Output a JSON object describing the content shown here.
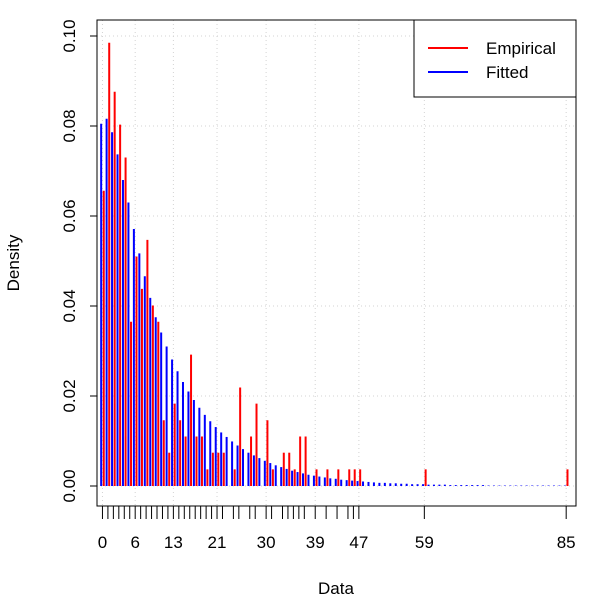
{
  "chart_data": {
    "type": "bar",
    "xlabel": "Data",
    "ylabel": "Density",
    "ylim": [
      0,
      0.1
    ],
    "xlim": [
      -1,
      86.8
    ],
    "grid": true,
    "legend_position": "top-right",
    "y_ticks": [
      "0.00",
      "0.02",
      "0.04",
      "0.06",
      "0.08",
      "0.10"
    ],
    "y_tick_values": [
      0,
      0.02,
      0.04,
      0.06,
      0.08,
      0.1
    ],
    "x_labeled_ticks": [
      0,
      6,
      13,
      21,
      30,
      39,
      47,
      59,
      85
    ],
    "x_minor_ticks": [
      0,
      1,
      2,
      3,
      4,
      5,
      6,
      7,
      8,
      9,
      10,
      11,
      12,
      13,
      14,
      15,
      16,
      17,
      18,
      19,
      20,
      21,
      22,
      24,
      25,
      27,
      28,
      30,
      31,
      33,
      34,
      35,
      36,
      37,
      39,
      41,
      43,
      45,
      46,
      47,
      59,
      85
    ],
    "series": [
      {
        "name": "Empirical",
        "color": "#ff0000",
        "x": [
          0,
          1,
          2,
          3,
          4,
          5,
          6,
          7,
          8,
          9,
          10,
          11,
          12,
          13,
          14,
          15,
          16,
          17,
          18,
          19,
          20,
          21,
          22,
          24,
          25,
          27,
          28,
          30,
          31,
          33,
          34,
          35,
          36,
          37,
          39,
          41,
          43,
          45,
          46,
          47,
          59,
          85
        ],
        "values": [
          0.0656,
          0.0985,
          0.0876,
          0.0803,
          0.073,
          0.0365,
          0.051,
          0.0438,
          0.0547,
          0.0401,
          0.0365,
          0.0146,
          0.0074,
          0.0183,
          0.0146,
          0.011,
          0.0292,
          0.011,
          0.011,
          0.0037,
          0.0074,
          0.0074,
          0.0074,
          0.0037,
          0.0219,
          0.011,
          0.0183,
          0.0146,
          0.0037,
          0.0074,
          0.0074,
          0.0037,
          0.011,
          0.011,
          0.0037,
          0.0037,
          0.0037,
          0.0037,
          0.0037,
          0.0037,
          0.0037,
          0.0037
        ]
      },
      {
        "name": "Fitted",
        "color": "#0000ff",
        "x_start": 0,
        "x_end": 85,
        "values": [
          0.0805,
          0.0816,
          0.0786,
          0.0737,
          0.068,
          0.063,
          0.0571,
          0.0517,
          0.0466,
          0.0418,
          0.0375,
          0.0341,
          0.031,
          0.0281,
          0.0255,
          0.0231,
          0.021,
          0.0191,
          0.0174,
          0.0158,
          0.0144,
          0.0131,
          0.0119,
          0.0109,
          0.0099,
          0.009,
          0.0082,
          0.0074,
          0.0068,
          0.0062,
          0.0056,
          0.0051,
          0.0046,
          0.0042,
          0.0038,
          0.0034,
          0.0031,
          0.0028,
          0.0025,
          0.0023,
          0.0021,
          0.0019,
          0.0017,
          0.0016,
          0.0014,
          0.0013,
          0.0012,
          0.0011,
          0.001,
          0.0009,
          0.0008,
          0.0007,
          0.0007,
          0.0006,
          0.0006,
          0.0005,
          0.0005,
          0.0004,
          0.0004,
          0.0004,
          0.0003,
          0.0003,
          0.0003,
          0.0003,
          0.0002,
          0.0002,
          0.0002,
          0.0002,
          0.0002,
          0.0002,
          0.0002,
          0.0001,
          0.0001,
          0.0001,
          0.0001,
          0.0001,
          0.0001,
          0.0001,
          0.0001,
          0.0001,
          0.0001,
          0.0001,
          0.0001,
          0.0001,
          0.0001,
          0.0001
        ]
      }
    ]
  }
}
